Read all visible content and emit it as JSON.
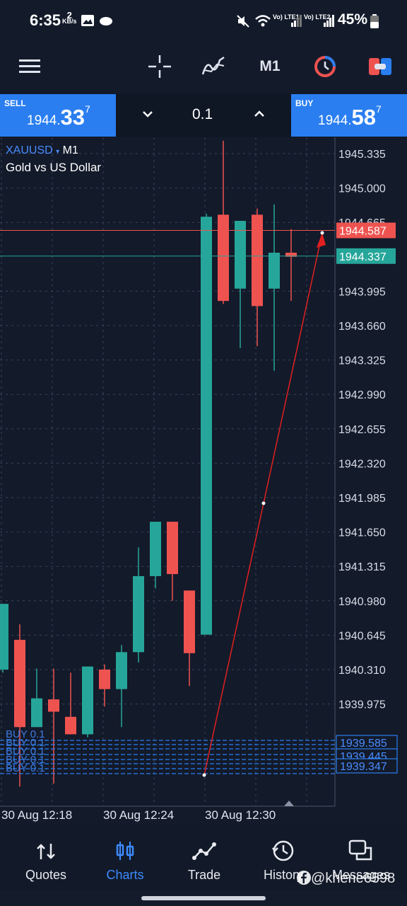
{
  "status": {
    "time": "6:35",
    "kbs_value": "2",
    "kbs_unit": "KB/s",
    "lte1": "Vo) LTE1",
    "lte2": "Vo) LTE2",
    "battery": "45%"
  },
  "toolbar": {
    "timeframe": "M1",
    "icons": [
      "menu-icon",
      "crosshair-icon",
      "indicators-icon",
      "timeframe",
      "one-click-trading-icon",
      "trade-panel-icon"
    ]
  },
  "trade": {
    "sell_label": "SELL",
    "sell_big": "1944.",
    "sell_main": "33",
    "sell_frac": "7",
    "buy_label": "BUY",
    "buy_big": "1944.",
    "buy_main": "58",
    "buy_frac": "7",
    "lot": "0.1"
  },
  "symbol": {
    "name": "XAUUSD",
    "timeframe": "M1",
    "description": "Gold vs US Dollar"
  },
  "colors": {
    "bull": "#26a69a",
    "bear": "#ef5350",
    "ask_line": "#ef5350",
    "bid_line": "#26a69a",
    "order_line": "#2a7ef0",
    "grid": "#3a4458",
    "arrow": "#e02020"
  },
  "chart_data": {
    "type": "candlestick",
    "symbol": "XAUUSD",
    "timeframe": "M1",
    "ylim": [
      1939.2,
      1945.5
    ],
    "y_ticks": [
      "1945.335",
      "1945.000",
      "1944.665",
      "1943.995",
      "1943.660",
      "1943.325",
      "1942.990",
      "1942.655",
      "1942.320",
      "1941.985",
      "1941.650",
      "1941.315",
      "1940.980",
      "1940.645",
      "1940.310",
      "1939.975"
    ],
    "x_labels": [
      "30 Aug 12:18",
      "30 Aug 12:24",
      "30 Aug 12:30"
    ],
    "ask_price": "1944.587",
    "bid_price": "1944.337",
    "order_prices": [
      "1939.585",
      "1939.445",
      "1939.347"
    ],
    "order_labels": [
      "BUY 0.1",
      "BUY 0.1",
      "BUY 0.1",
      "BUY 0.1",
      "BUY 0.1"
    ],
    "candles": [
      {
        "o": 1940.31,
        "h": 1940.95,
        "l": 1940.28,
        "c": 1940.95
      },
      {
        "o": 1940.6,
        "h": 1940.75,
        "l": 1939.17,
        "c": 1939.75
      },
      {
        "o": 1939.75,
        "h": 1940.32,
        "l": 1939.75,
        "c": 1940.03
      },
      {
        "o": 1940.02,
        "h": 1940.32,
        "l": 1939.2,
        "c": 1939.9
      },
      {
        "o": 1939.85,
        "h": 1940.28,
        "l": 1939.68,
        "c": 1939.68
      },
      {
        "o": 1939.68,
        "h": 1940.34,
        "l": 1939.65,
        "c": 1940.34
      },
      {
        "o": 1940.31,
        "h": 1940.36,
        "l": 1939.95,
        "c": 1940.12
      },
      {
        "o": 1940.12,
        "h": 1940.55,
        "l": 1939.75,
        "c": 1940.48
      },
      {
        "o": 1940.48,
        "h": 1941.5,
        "l": 1940.38,
        "c": 1941.22
      },
      {
        "o": 1941.22,
        "h": 1941.73,
        "l": 1941.1,
        "c": 1941.75
      },
      {
        "o": 1941.75,
        "h": 1941.7,
        "l": 1940.98,
        "c": 1941.24
      },
      {
        "o": 1941.08,
        "h": 1941.08,
        "l": 1940.15,
        "c": 1940.47
      },
      {
        "o": 1940.65,
        "h": 1944.75,
        "l": 1940.65,
        "c": 1944.72
      },
      {
        "o": 1944.74,
        "h": 1945.46,
        "l": 1943.87,
        "c": 1943.9
      },
      {
        "o": 1944.02,
        "h": 1944.68,
        "l": 1943.44,
        "c": 1944.68
      },
      {
        "o": 1944.74,
        "h": 1944.8,
        "l": 1943.46,
        "c": 1943.85
      },
      {
        "o": 1944.02,
        "h": 1944.84,
        "l": 1943.22,
        "c": 1944.37
      },
      {
        "o": 1944.37,
        "h": 1944.6,
        "l": 1943.9,
        "c": 1944.33
      }
    ]
  },
  "nav": [
    {
      "label": "Quotes",
      "icon": "quotes-icon"
    },
    {
      "label": "Charts",
      "icon": "charts-icon"
    },
    {
      "label": "Trade",
      "icon": "trade-icon"
    },
    {
      "label": "History",
      "icon": "history-icon"
    },
    {
      "label": "Messages",
      "icon": "messages-icon"
    }
  ],
  "watermark": "khene6598"
}
